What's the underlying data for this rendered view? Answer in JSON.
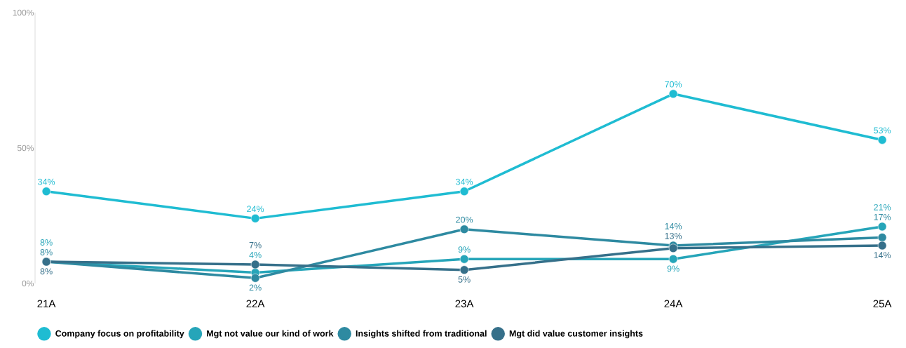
{
  "chart_data": {
    "type": "line",
    "categories": [
      "21A",
      "22A",
      "23A",
      "24A",
      "25A"
    ],
    "series": [
      {
        "name": "Company focus on profitability",
        "color": "#1fbcd2",
        "values": [
          34,
          24,
          34,
          70,
          53
        ],
        "value_labels": [
          "34%",
          "24%",
          "34%",
          "70%",
          "53%"
        ]
      },
      {
        "name": "Mgt not value our kind of work",
        "color": "#26a5b9",
        "values": [
          8,
          4,
          9,
          9,
          21
        ],
        "value_labels": [
          "8%",
          "4%",
          "9%",
          "9%",
          "21%"
        ]
      },
      {
        "name": "Insights shifted from traditional",
        "color": "#2e8aa1",
        "values": [
          8,
          2,
          20,
          14,
          17
        ],
        "value_labels": [
          "8%",
          "2%",
          "20%",
          "14%",
          "17%"
        ]
      },
      {
        "name": "Mgt did value customer insights",
        "color": "#36708a",
        "values": [
          8,
          7,
          5,
          13,
          14
        ],
        "value_labels": [
          "8%",
          "7%",
          "5%",
          "13%",
          "14%"
        ]
      }
    ],
    "ylim": [
      0,
      100
    ],
    "yticks": [
      {
        "value": 0,
        "label": "0%"
      },
      {
        "value": 50,
        "label": "50%"
      },
      {
        "value": 100,
        "label": "100%"
      }
    ],
    "grid": false,
    "legend": "bottom",
    "marker": "circle",
    "line_style": "solid"
  }
}
